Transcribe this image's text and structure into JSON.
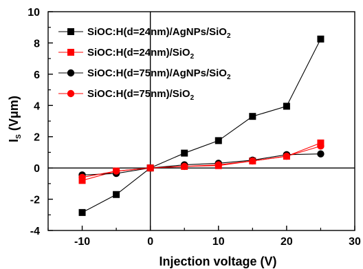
{
  "chart_data": {
    "type": "line",
    "title": "",
    "xlabel": "Injection voltage (V)",
    "ylabel": {
      "main": "I",
      "sub": "S",
      "unit": " (Vμm)"
    },
    "xlim": [
      -15,
      30
    ],
    "ylim": [
      -4,
      10
    ],
    "xticks": [
      -10,
      0,
      10,
      20,
      30
    ],
    "xtick_labels": [
      "-10",
      "0",
      "10",
      "20",
      "30"
    ],
    "yticks": [
      -4,
      -2,
      0,
      2,
      4,
      6,
      8,
      10
    ],
    "ytick_labels": [
      "-4",
      "-2",
      "0",
      "2",
      "4",
      "6",
      "8",
      "10"
    ],
    "grid": false,
    "legend_position": "top-left",
    "zero_lines": true,
    "x": [
      -10,
      -5,
      0,
      5,
      10,
      15,
      20,
      25
    ],
    "series": [
      {
        "name": "SiOC:H(d=24nm)/AgNPs/SiO2",
        "label_main": "SiOC:H(d=24nm)/AgNPs/SiO",
        "label_sub": "2",
        "color": "#000000",
        "marker": "square",
        "values": [
          -2.85,
          -1.7,
          0.0,
          0.95,
          1.75,
          3.3,
          3.95,
          8.25
        ]
      },
      {
        "name": "SiOC:H(d=24nm)/SiO2",
        "label_main": "SiOC:H(d=24nm)/SiO",
        "label_sub": "2",
        "color": "#ff0000",
        "marker": "square",
        "values": [
          -0.8,
          -0.2,
          0.0,
          0.1,
          0.15,
          0.45,
          0.75,
          1.6
        ]
      },
      {
        "name": "SiOC:H(d=75nm)/AgNPs/SiO2",
        "label_main": "SiOC:H(d=75nm)/AgNPs/SiO",
        "label_sub": "2",
        "color": "#000000",
        "marker": "circle",
        "values": [
          -0.45,
          -0.35,
          0.0,
          0.2,
          0.3,
          0.5,
          0.85,
          0.9
        ]
      },
      {
        "name": "SiOC:H(d=75nm)/SiO2",
        "label_main": "SiOC:H(d=75nm)/SiO",
        "label_sub": "2",
        "color": "#ff0000",
        "marker": "circle",
        "values": [
          -0.6,
          -0.2,
          0.0,
          0.1,
          0.2,
          0.45,
          0.75,
          1.4
        ]
      }
    ]
  }
}
